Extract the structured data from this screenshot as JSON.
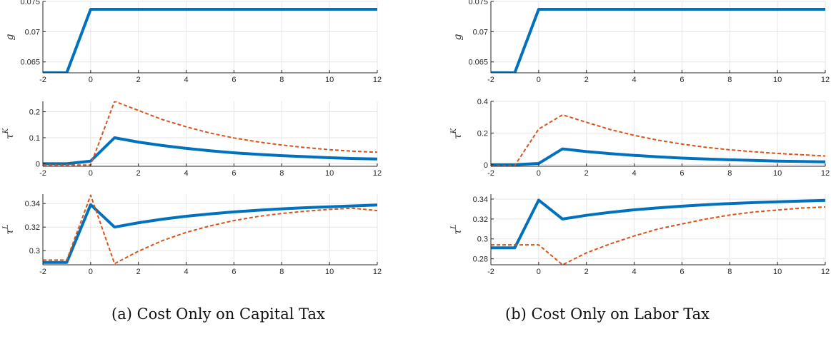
{
  "colors": {
    "solid": "#0072bd",
    "dashed": "#d95319",
    "grid": "#e6e6e6",
    "axis": "#262626"
  },
  "captions": [
    "(a) Cost Only on Capital Tax",
    "(b) Cost Only on Labor Tax"
  ],
  "chart_data": [
    {
      "type": "line",
      "panel": "a",
      "ylabel": "g",
      "xlim": [
        -2,
        12
      ],
      "ylim": [
        0.0632,
        0.075
      ],
      "xticks": [
        "-2",
        "0",
        "2",
        "4",
        "6",
        "8",
        "10",
        "12"
      ],
      "yticks": [
        {
          "v": 0.065,
          "label": "0.065"
        },
        {
          "v": 0.07,
          "label": "0.07"
        },
        {
          "v": 0.075,
          "label": "0.075"
        }
      ],
      "series": [
        {
          "style": "solid",
          "x": [
            -2,
            -1,
            0,
            1,
            2,
            3,
            4,
            5,
            6,
            7,
            8,
            9,
            10,
            11,
            12
          ],
          "y": [
            0.0632,
            0.0632,
            0.0737,
            0.0737,
            0.0737,
            0.0737,
            0.0737,
            0.0737,
            0.0737,
            0.0737,
            0.0737,
            0.0737,
            0.0737,
            0.0737,
            0.0737
          ]
        }
      ]
    },
    {
      "type": "line",
      "panel": "a",
      "ylabel": "τ",
      "ylabel_sup": "K",
      "xlim": [
        -2,
        12
      ],
      "ylim": [
        -0.01,
        0.24
      ],
      "xticks": [
        "-2",
        "0",
        "2",
        "4",
        "6",
        "8",
        "10",
        "12"
      ],
      "yticks": [
        {
          "v": 0,
          "label": "0"
        },
        {
          "v": 0.1,
          "label": "0.1"
        },
        {
          "v": 0.2,
          "label": "0.2"
        }
      ],
      "series": [
        {
          "style": "solid",
          "x": [
            -2,
            -1,
            0,
            1,
            2,
            3,
            4,
            5,
            6,
            7,
            8,
            9,
            10,
            11,
            12
          ],
          "y": [
            0,
            0,
            0.01,
            0.1,
            0.083,
            0.07,
            0.059,
            0.05,
            0.042,
            0.036,
            0.031,
            0.027,
            0.023,
            0.02,
            0.018
          ]
        },
        {
          "style": "dashed",
          "x": [
            -2,
            -1,
            0,
            1,
            2,
            3,
            4,
            5,
            6,
            7,
            8,
            9,
            10,
            11,
            12
          ],
          "y": [
            -0.005,
            -0.005,
            -0.005,
            0.24,
            0.205,
            0.17,
            0.142,
            0.118,
            0.099,
            0.084,
            0.072,
            0.062,
            0.054,
            0.048,
            0.044
          ]
        }
      ]
    },
    {
      "type": "line",
      "panel": "a",
      "ylabel": "τ",
      "ylabel_sup": "L",
      "xlim": [
        -2,
        12
      ],
      "ylim": [
        0.288,
        0.348
      ],
      "xticks": [
        "-2",
        "0",
        "2",
        "4",
        "6",
        "8",
        "10",
        "12"
      ],
      "yticks": [
        {
          "v": 0.3,
          "label": "0.3"
        },
        {
          "v": 0.32,
          "label": "0.32"
        },
        {
          "v": 0.34,
          "label": "0.34"
        }
      ],
      "series": [
        {
          "style": "solid",
          "x": [
            -2,
            -1,
            0,
            1,
            2,
            3,
            4,
            5,
            6,
            7,
            8,
            9,
            10,
            11,
            12
          ],
          "y": [
            0.29,
            0.29,
            0.339,
            0.32,
            0.3237,
            0.3267,
            0.3292,
            0.3312,
            0.3329,
            0.3343,
            0.3355,
            0.3365,
            0.3373,
            0.338,
            0.3387
          ]
        },
        {
          "style": "dashed",
          "x": [
            -2,
            -1,
            0,
            1,
            2,
            3,
            4,
            5,
            6,
            7,
            8,
            9,
            10,
            11,
            12
          ],
          "y": [
            0.292,
            0.292,
            0.347,
            0.289,
            0.2995,
            0.3085,
            0.3155,
            0.321,
            0.3255,
            0.329,
            0.3316,
            0.3335,
            0.335,
            0.336,
            0.334
          ]
        }
      ]
    },
    {
      "type": "line",
      "panel": "b",
      "ylabel": "g",
      "xlim": [
        -2,
        12
      ],
      "ylim": [
        0.0632,
        0.075
      ],
      "xticks": [
        "-2",
        "0",
        "2",
        "4",
        "6",
        "8",
        "10",
        "12"
      ],
      "yticks": [
        {
          "v": 0.065,
          "label": "0.065"
        },
        {
          "v": 0.07,
          "label": "0.07"
        },
        {
          "v": 0.075,
          "label": "0.075"
        }
      ],
      "series": [
        {
          "style": "solid",
          "x": [
            -2,
            -1,
            0,
            1,
            2,
            3,
            4,
            5,
            6,
            7,
            8,
            9,
            10,
            11,
            12
          ],
          "y": [
            0.0632,
            0.0632,
            0.0737,
            0.0737,
            0.0737,
            0.0737,
            0.0737,
            0.0737,
            0.0737,
            0.0737,
            0.0737,
            0.0737,
            0.0737,
            0.0737,
            0.0737
          ]
        }
      ]
    },
    {
      "type": "line",
      "panel": "b",
      "ylabel": "τ",
      "ylabel_sup": "K",
      "xlim": [
        -2,
        12
      ],
      "ylim": [
        -0.01,
        0.4
      ],
      "xticks": [
        "-2",
        "0",
        "2",
        "4",
        "6",
        "8",
        "10",
        "12"
      ],
      "yticks": [
        {
          "v": 0,
          "label": "0"
        },
        {
          "v": 0.2,
          "label": "0.2"
        },
        {
          "v": 0.4,
          "label": "0.4"
        }
      ],
      "series": [
        {
          "style": "solid",
          "x": [
            -2,
            -1,
            0,
            1,
            2,
            3,
            4,
            5,
            6,
            7,
            8,
            9,
            10,
            11,
            12
          ],
          "y": [
            0,
            0,
            0.008,
            0.1,
            0.083,
            0.07,
            0.059,
            0.05,
            0.042,
            0.036,
            0.031,
            0.027,
            0.023,
            0.02,
            0.018
          ]
        },
        {
          "style": "dashed",
          "x": [
            -2,
            -1,
            0,
            1,
            2,
            3,
            4,
            5,
            6,
            7,
            8,
            9,
            10,
            11,
            12
          ],
          "y": [
            -0.005,
            -0.005,
            0.225,
            0.315,
            0.268,
            0.222,
            0.185,
            0.155,
            0.13,
            0.11,
            0.094,
            0.082,
            0.071,
            0.063,
            0.055
          ]
        }
      ]
    },
    {
      "type": "line",
      "panel": "b",
      "ylabel": "τ",
      "ylabel_sup": "L",
      "xlim": [
        -2,
        12
      ],
      "ylim": [
        0.274,
        0.345
      ],
      "xticks": [
        "-2",
        "0",
        "2",
        "4",
        "6",
        "8",
        "10",
        "12"
      ],
      "yticks": [
        {
          "v": 0.28,
          "label": "0.28"
        },
        {
          "v": 0.3,
          "label": "0.3"
        },
        {
          "v": 0.32,
          "label": "0.32"
        },
        {
          "v": 0.34,
          "label": "0.34"
        }
      ],
      "series": [
        {
          "style": "solid",
          "x": [
            -2,
            -1,
            0,
            1,
            2,
            3,
            4,
            5,
            6,
            7,
            8,
            9,
            10,
            11,
            12
          ],
          "y": [
            0.291,
            0.291,
            0.339,
            0.32,
            0.3237,
            0.3267,
            0.3292,
            0.3312,
            0.3329,
            0.3343,
            0.3355,
            0.3365,
            0.3373,
            0.338,
            0.3387
          ]
        },
        {
          "style": "dashed",
          "x": [
            -2,
            -1,
            0,
            1,
            2,
            3,
            4,
            5,
            6,
            7,
            8,
            9,
            10,
            11,
            12
          ],
          "y": [
            0.294,
            0.294,
            0.294,
            0.274,
            0.286,
            0.295,
            0.303,
            0.31,
            0.315,
            0.32,
            0.324,
            0.327,
            0.329,
            0.331,
            0.332
          ]
        }
      ]
    }
  ]
}
